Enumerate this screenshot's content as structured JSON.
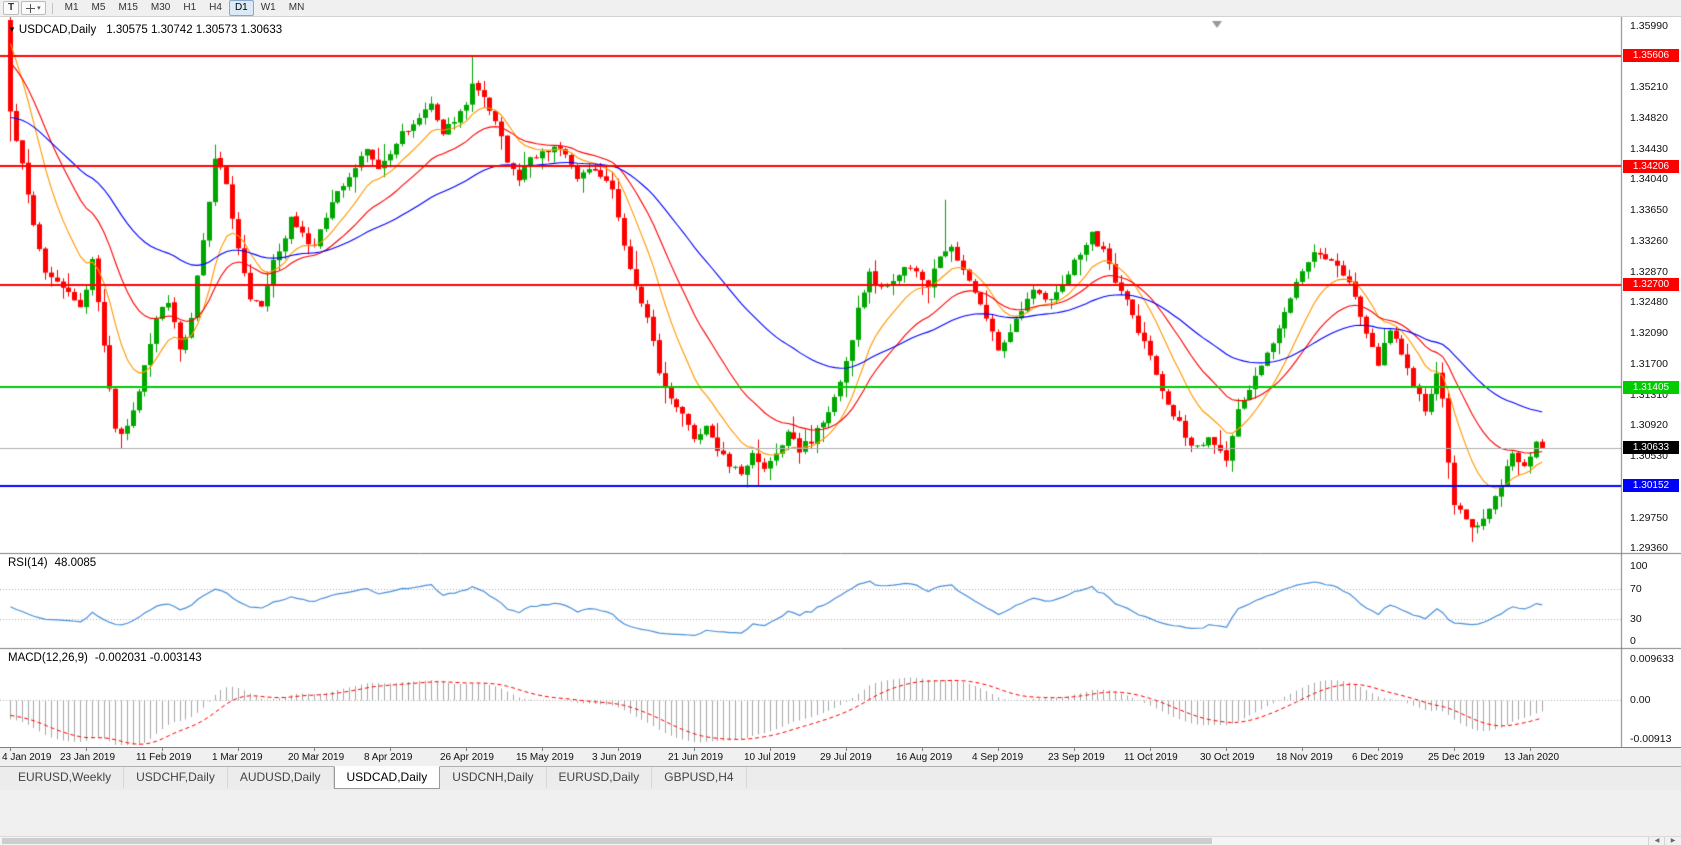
{
  "toolbar": {
    "icons": [
      {
        "name": "templates-icon",
        "glyph": "T"
      }
    ],
    "timeframes": [
      "M1",
      "M5",
      "M15",
      "M30",
      "H1",
      "H4",
      "D1",
      "W1",
      "MN"
    ],
    "active_timeframe": "D1"
  },
  "icons": {
    "symbol_marker": "▼",
    "dropdown_arrow": "▾",
    "scroll_left": "◀",
    "scroll_right": "▶"
  },
  "chart": {
    "title_symbol": "USDCAD,Daily",
    "title_values": "1.30575 1.30742 1.30573 1.30633",
    "ohlc": {
      "open": "1.30575",
      "high": "1.30742",
      "low": "1.30573",
      "close": "1.30633"
    }
  },
  "chart_data": {
    "type": "candlestick",
    "symbol": "USDCAD",
    "timeframe": "Daily",
    "candle_count": 263,
    "price_range": {
      "min": 1.293,
      "max": 1.3606
    },
    "price_axis_ticks": [
      "1.35990",
      "1.35600",
      "1.35210",
      "1.34820",
      "1.34430",
      "1.34040",
      "1.33650",
      "1.33260",
      "1.32870",
      "1.32480",
      "1.32090",
      "1.31700",
      "1.31310",
      "1.30920",
      "1.30530",
      "1.30140",
      "1.29750",
      "1.29360"
    ],
    "x_axis_dates": [
      "4 Jan 2019",
      "23 Jan 2019",
      "11 Feb 2019",
      "1 Mar 2019",
      "20 Mar 2019",
      "8 Apr 2019",
      "26 Apr 2019",
      "15 May 2019",
      "3 Jun 2019",
      "21 Jun 2019",
      "10 Jul 2019",
      "29 Jul 2019",
      "16 Aug 2019",
      "4 Sep 2019",
      "23 Sep 2019",
      "11 Oct 2019",
      "30 Oct 2019",
      "18 Nov 2019",
      "6 Dec 2019",
      "25 Dec 2019",
      "13 Jan 2020"
    ],
    "candle_up_color": "#00a600",
    "candle_down_color": "#ff0000",
    "first_candle": {
      "open": 1.3606,
      "high": 1.3625,
      "low": 1.3452,
      "close": 1.349
    },
    "close_anchors": [
      [
        0,
        1.349
      ],
      [
        2,
        1.342
      ],
      [
        4,
        1.3345
      ],
      [
        6,
        1.329
      ],
      [
        8,
        1.3272
      ],
      [
        10,
        1.3258
      ],
      [
        12,
        1.324
      ],
      [
        14,
        1.3298
      ],
      [
        16,
        1.319
      ],
      [
        18,
        1.3092
      ],
      [
        19,
        1.3076
      ],
      [
        21,
        1.3112
      ],
      [
        23,
        1.3165
      ],
      [
        25,
        1.3228
      ],
      [
        27,
        1.3252
      ],
      [
        29,
        1.3188
      ],
      [
        31,
        1.3228
      ],
      [
        33,
        1.3328
      ],
      [
        35,
        1.3432
      ],
      [
        37,
        1.3398
      ],
      [
        39,
        1.3312
      ],
      [
        41,
        1.3255
      ],
      [
        43,
        1.3242
      ],
      [
        45,
        1.3298
      ],
      [
        48,
        1.3352
      ],
      [
        50,
        1.3332
      ],
      [
        52,
        1.3318
      ],
      [
        55,
        1.3372
      ],
      [
        58,
        1.3412
      ],
      [
        61,
        1.3442
      ],
      [
        63,
        1.3422
      ],
      [
        65,
        1.3432
      ],
      [
        67,
        1.3462
      ],
      [
        70,
        1.3478
      ],
      [
        72,
        1.3498
      ],
      [
        74,
        1.3466
      ],
      [
        76,
        1.3476
      ],
      [
        78,
        1.3502
      ],
      [
        79,
        1.3522
      ],
      [
        81,
        1.3508
      ],
      [
        83,
        1.3482
      ],
      [
        85,
        1.3428
      ],
      [
        87,
        1.3402
      ],
      [
        89,
        1.3428
      ],
      [
        91,
        1.3438
      ],
      [
        93,
        1.3448
      ],
      [
        95,
        1.3436
      ],
      [
        97,
        1.3408
      ],
      [
        99,
        1.3418
      ],
      [
        101,
        1.3408
      ],
      [
        103,
        1.3388
      ],
      [
        105,
        1.3318
      ],
      [
        107,
        1.3268
      ],
      [
        109,
        1.3232
      ],
      [
        111,
        1.3162
      ],
      [
        113,
        1.3128
      ],
      [
        115,
        1.3102
      ],
      [
        117,
        1.3078
      ],
      [
        119,
        1.3092
      ],
      [
        121,
        1.3062
      ],
      [
        123,
        1.304
      ],
      [
        125,
        1.3028
      ],
      [
        127,
        1.3052
      ],
      [
        129,
        1.3038
      ],
      [
        131,
        1.3058
      ],
      [
        133,
        1.3082
      ],
      [
        135,
        1.3062
      ],
      [
        137,
        1.3072
      ],
      [
        139,
        1.3096
      ],
      [
        141,
        1.3128
      ],
      [
        143,
        1.3172
      ],
      [
        145,
        1.3238
      ],
      [
        147,
        1.3282
      ],
      [
        149,
        1.3266
      ],
      [
        151,
        1.3276
      ],
      [
        153,
        1.3298
      ],
      [
        155,
        1.3282
      ],
      [
        157,
        1.3272
      ],
      [
        159,
        1.3306
      ],
      [
        161,
        1.3322
      ],
      [
        163,
        1.3288
      ],
      [
        165,
        1.3262
      ],
      [
        167,
        1.3228
      ],
      [
        169,
        1.3186
      ],
      [
        171,
        1.3208
      ],
      [
        173,
        1.3238
      ],
      [
        175,
        1.3262
      ],
      [
        177,
        1.3246
      ],
      [
        179,
        1.3262
      ],
      [
        181,
        1.3282
      ],
      [
        183,
        1.3312
      ],
      [
        185,
        1.3332
      ],
      [
        187,
        1.3316
      ],
      [
        189,
        1.3278
      ],
      [
        191,
        1.3248
      ],
      [
        193,
        1.3212
      ],
      [
        195,
        1.3176
      ],
      [
        197,
        1.3138
      ],
      [
        199,
        1.3106
      ],
      [
        201,
        1.308
      ],
      [
        203,
        1.3062
      ],
      [
        205,
        1.3076
      ],
      [
        207,
        1.3058
      ],
      [
        208,
        1.3052
      ],
      [
        210,
        1.3108
      ],
      [
        212,
        1.3142
      ],
      [
        214,
        1.3168
      ],
      [
        216,
        1.3196
      ],
      [
        218,
        1.3238
      ],
      [
        220,
        1.3272
      ],
      [
        222,
        1.3302
      ],
      [
        224,
        1.3312
      ],
      [
        226,
        1.3296
      ],
      [
        228,
        1.3286
      ],
      [
        230,
        1.3252
      ],
      [
        232,
        1.3208
      ],
      [
        234,
        1.3172
      ],
      [
        236,
        1.3216
      ],
      [
        238,
        1.3178
      ],
      [
        240,
        1.3142
      ],
      [
        242,
        1.3112
      ],
      [
        244,
        1.3158
      ],
      [
        245,
        1.3122
      ],
      [
        246,
        1.3048
      ],
      [
        247,
        1.2996
      ],
      [
        249,
        1.2972
      ],
      [
        251,
        1.2962
      ],
      [
        253,
        1.2988
      ],
      [
        255,
        1.3018
      ],
      [
        257,
        1.3052
      ],
      [
        259,
        1.3042
      ],
      [
        261,
        1.3068
      ],
      [
        262,
        1.30633
      ]
    ],
    "spikes": [
      {
        "t": 19,
        "low": 1.3068
      },
      {
        "t": 35,
        "high": 1.3448
      },
      {
        "t": 79,
        "high": 1.3561
      },
      {
        "t": 128,
        "low": 1.3014
      },
      {
        "t": 160,
        "high": 1.3378
      },
      {
        "t": 250,
        "low": 1.2944
      }
    ],
    "hlines": [
      {
        "price": 1.35606,
        "color": "#ff0000",
        "label": "1.35606"
      },
      {
        "price": 1.34206,
        "color": "#ff0000",
        "label": "1.34206"
      },
      {
        "price": 1.327,
        "color": "#ff0000",
        "label": "1.32700"
      },
      {
        "price": 1.31405,
        "color": "#00cc00",
        "label": "1.31405"
      },
      {
        "price": 1.30152,
        "color": "#0000ff",
        "label": "1.30152"
      }
    ],
    "current_price": {
      "value": 1.30633,
      "label": "1.30633",
      "tag_color": "#000000",
      "line_color": "#b0b0b0"
    },
    "moving_averages": [
      {
        "period": 10,
        "color": "#ff9800",
        "seed": 1.3595
      },
      {
        "period": 21,
        "color": "#ff0000",
        "seed": 1.3558
      },
      {
        "period": 50,
        "color": "#0000ff",
        "seed": 1.3482
      }
    ],
    "rsi": {
      "label": "RSI(14)",
      "value_display": "48.0085",
      "period": 14,
      "levels": [
        70,
        30
      ],
      "axis_labels": [
        "100",
        "70",
        "30",
        "0"
      ],
      "color": "#4a90d9",
      "seed_gain": 0.0016,
      "seed_loss": 0.0019
    },
    "macd": {
      "label": "MACD(12,26,9)",
      "values_display": "-0.002031 -0.003143",
      "fast_period": 12,
      "slow_period": 26,
      "signal_period": 9,
      "axis_labels": [
        "0.009633",
        "0.00",
        "-0.00913"
      ],
      "histogram_color": "#a8a8a8",
      "signal_color": "#ff0000",
      "seed_fast": 1.3525,
      "seed_slow": 1.3565,
      "seed_signal": -0.003
    }
  },
  "tabs": {
    "items": [
      "EURUSD,Weekly",
      "USDCHF,Daily",
      "AUDUSD,Daily",
      "USDCAD,Daily",
      "USDCNH,Daily",
      "EURUSD,Daily",
      "GBPUSD,H4"
    ],
    "active": "USDCAD,Daily"
  }
}
